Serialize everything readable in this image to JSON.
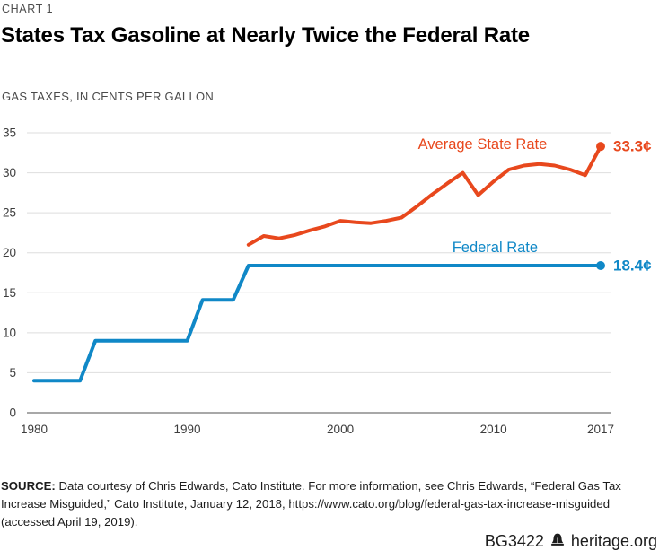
{
  "page": {
    "kicker": "CHART 1",
    "title": "States Tax Gasoline at Nearly Twice the Federal Rate",
    "subtitle": "GAS TAXES, IN CENTS PER GALLON",
    "source_label": "SOURCE:",
    "source_text": " Data courtesy of Chris Edwards, Cato Institute. For more information, see Chris Edwards, “Federal Gas Tax Increase Misguided,” Cato Institute, January 12, 2018, https://www.cato.org/blog/federal-gas-tax-increase-misguided (accessed April 19, 2019).",
    "footer_id": "BG3422",
    "footer_icon": "liberty-bell-icon",
    "footer_site": "heritage.org"
  },
  "colors": {
    "federal_blue": "#1088c7",
    "state_orange": "#e8481d",
    "gridline": "#dedede",
    "zero_axis": "#a8a8a8",
    "tick_text": "#3d3d3d"
  },
  "chart_data": {
    "type": "line",
    "title": "States Tax Gasoline at Nearly Twice the Federal Rate",
    "subtitle": "GAS TAXES, IN CENTS PER GALLON",
    "xlabel": "",
    "ylabel": "Gas taxes, in cents per gallon",
    "xlim": [
      1980,
      2017
    ],
    "ylim": [
      0,
      35
    ],
    "y_ticks": [
      0,
      5,
      10,
      15,
      20,
      25,
      30,
      35
    ],
    "x_ticks": [
      1980,
      1990,
      2000,
      2010,
      2017
    ],
    "grid": "horizontal-only",
    "legend_position": "inline-labels",
    "series": [
      {
        "name": "Federal Rate",
        "color": "#1088c7",
        "end_label": "18.4¢",
        "end_dot": true,
        "label_anchor": {
          "year": 2012.9,
          "value": 20.1
        },
        "x": [
          1980,
          1981,
          1982,
          1983,
          1984,
          1985,
          1986,
          1987,
          1988,
          1989,
          1990,
          1991,
          1992,
          1993,
          1994,
          1995,
          1996,
          1997,
          1998,
          1999,
          2000,
          2001,
          2002,
          2003,
          2004,
          2005,
          2006,
          2007,
          2008,
          2009,
          2010,
          2011,
          2012,
          2013,
          2014,
          2015,
          2016,
          2017
        ],
        "values": [
          4,
          4,
          4,
          4,
          9,
          9,
          9,
          9,
          9,
          9,
          9,
          14.1,
          14.1,
          14.1,
          18.4,
          18.4,
          18.4,
          18.4,
          18.4,
          18.4,
          18.4,
          18.4,
          18.4,
          18.4,
          18.4,
          18.4,
          18.4,
          18.4,
          18.4,
          18.4,
          18.4,
          18.4,
          18.4,
          18.4,
          18.4,
          18.4,
          18.4,
          18.4
        ]
      },
      {
        "name": "Average State Rate",
        "color": "#e8481d",
        "end_label": "33.3¢",
        "end_dot": true,
        "label_anchor": {
          "year": 2013.5,
          "value": 33.0
        },
        "x": [
          1994,
          1995,
          1996,
          1997,
          1998,
          1999,
          2000,
          2001,
          2002,
          2003,
          2004,
          2005,
          2006,
          2007,
          2008,
          2009,
          2010,
          2011,
          2012,
          2013,
          2014,
          2015,
          2016,
          2017
        ],
        "values": [
          21.0,
          22.1,
          21.8,
          22.2,
          22.8,
          23.3,
          24.0,
          23.8,
          23.7,
          24.0,
          24.4,
          25.8,
          27.3,
          28.7,
          30.0,
          27.2,
          28.9,
          30.4,
          30.9,
          31.1,
          30.9,
          30.4,
          29.7,
          33.3
        ]
      }
    ]
  }
}
